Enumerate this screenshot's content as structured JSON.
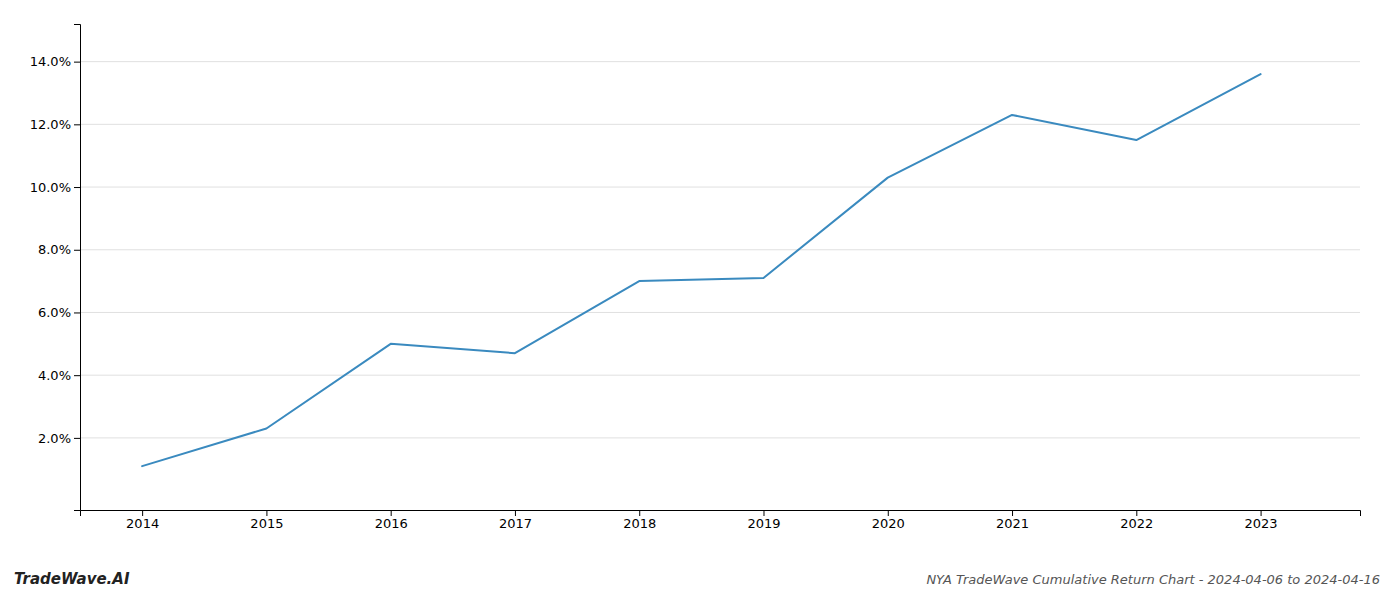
{
  "chart_data": {
    "type": "line",
    "title": "NYA TradeWave Cumulative Return Chart - 2024-04-06 to 2024-04-16",
    "annotations": [
      "TradeWave.AI"
    ],
    "x": [
      2014,
      2015,
      2016,
      2017,
      2018,
      2019,
      2020,
      2021,
      2022,
      2023
    ],
    "values": [
      1.1,
      2.3,
      5.0,
      4.7,
      7.0,
      7.1,
      10.3,
      12.3,
      11.5,
      13.6
    ],
    "color": "#3a8abf",
    "xlim": [
      2013.5,
      2023.8
    ],
    "xticks": [
      2014,
      2015,
      2016,
      2017,
      2018,
      2019,
      2020,
      2021,
      2022,
      2023
    ],
    "ylim": [
      -0.3,
      15.2
    ],
    "yticks": [
      {
        "value": 2,
        "label": "2.0%"
      },
      {
        "value": 4,
        "label": "4.0%"
      },
      {
        "value": 6,
        "label": "6.0%"
      },
      {
        "value": 8,
        "label": "8.0%"
      },
      {
        "value": 10,
        "label": "10.0%"
      },
      {
        "value": 12,
        "label": "12.0%"
      },
      {
        "value": 14,
        "label": "14.0%"
      }
    ],
    "grid": "y"
  }
}
